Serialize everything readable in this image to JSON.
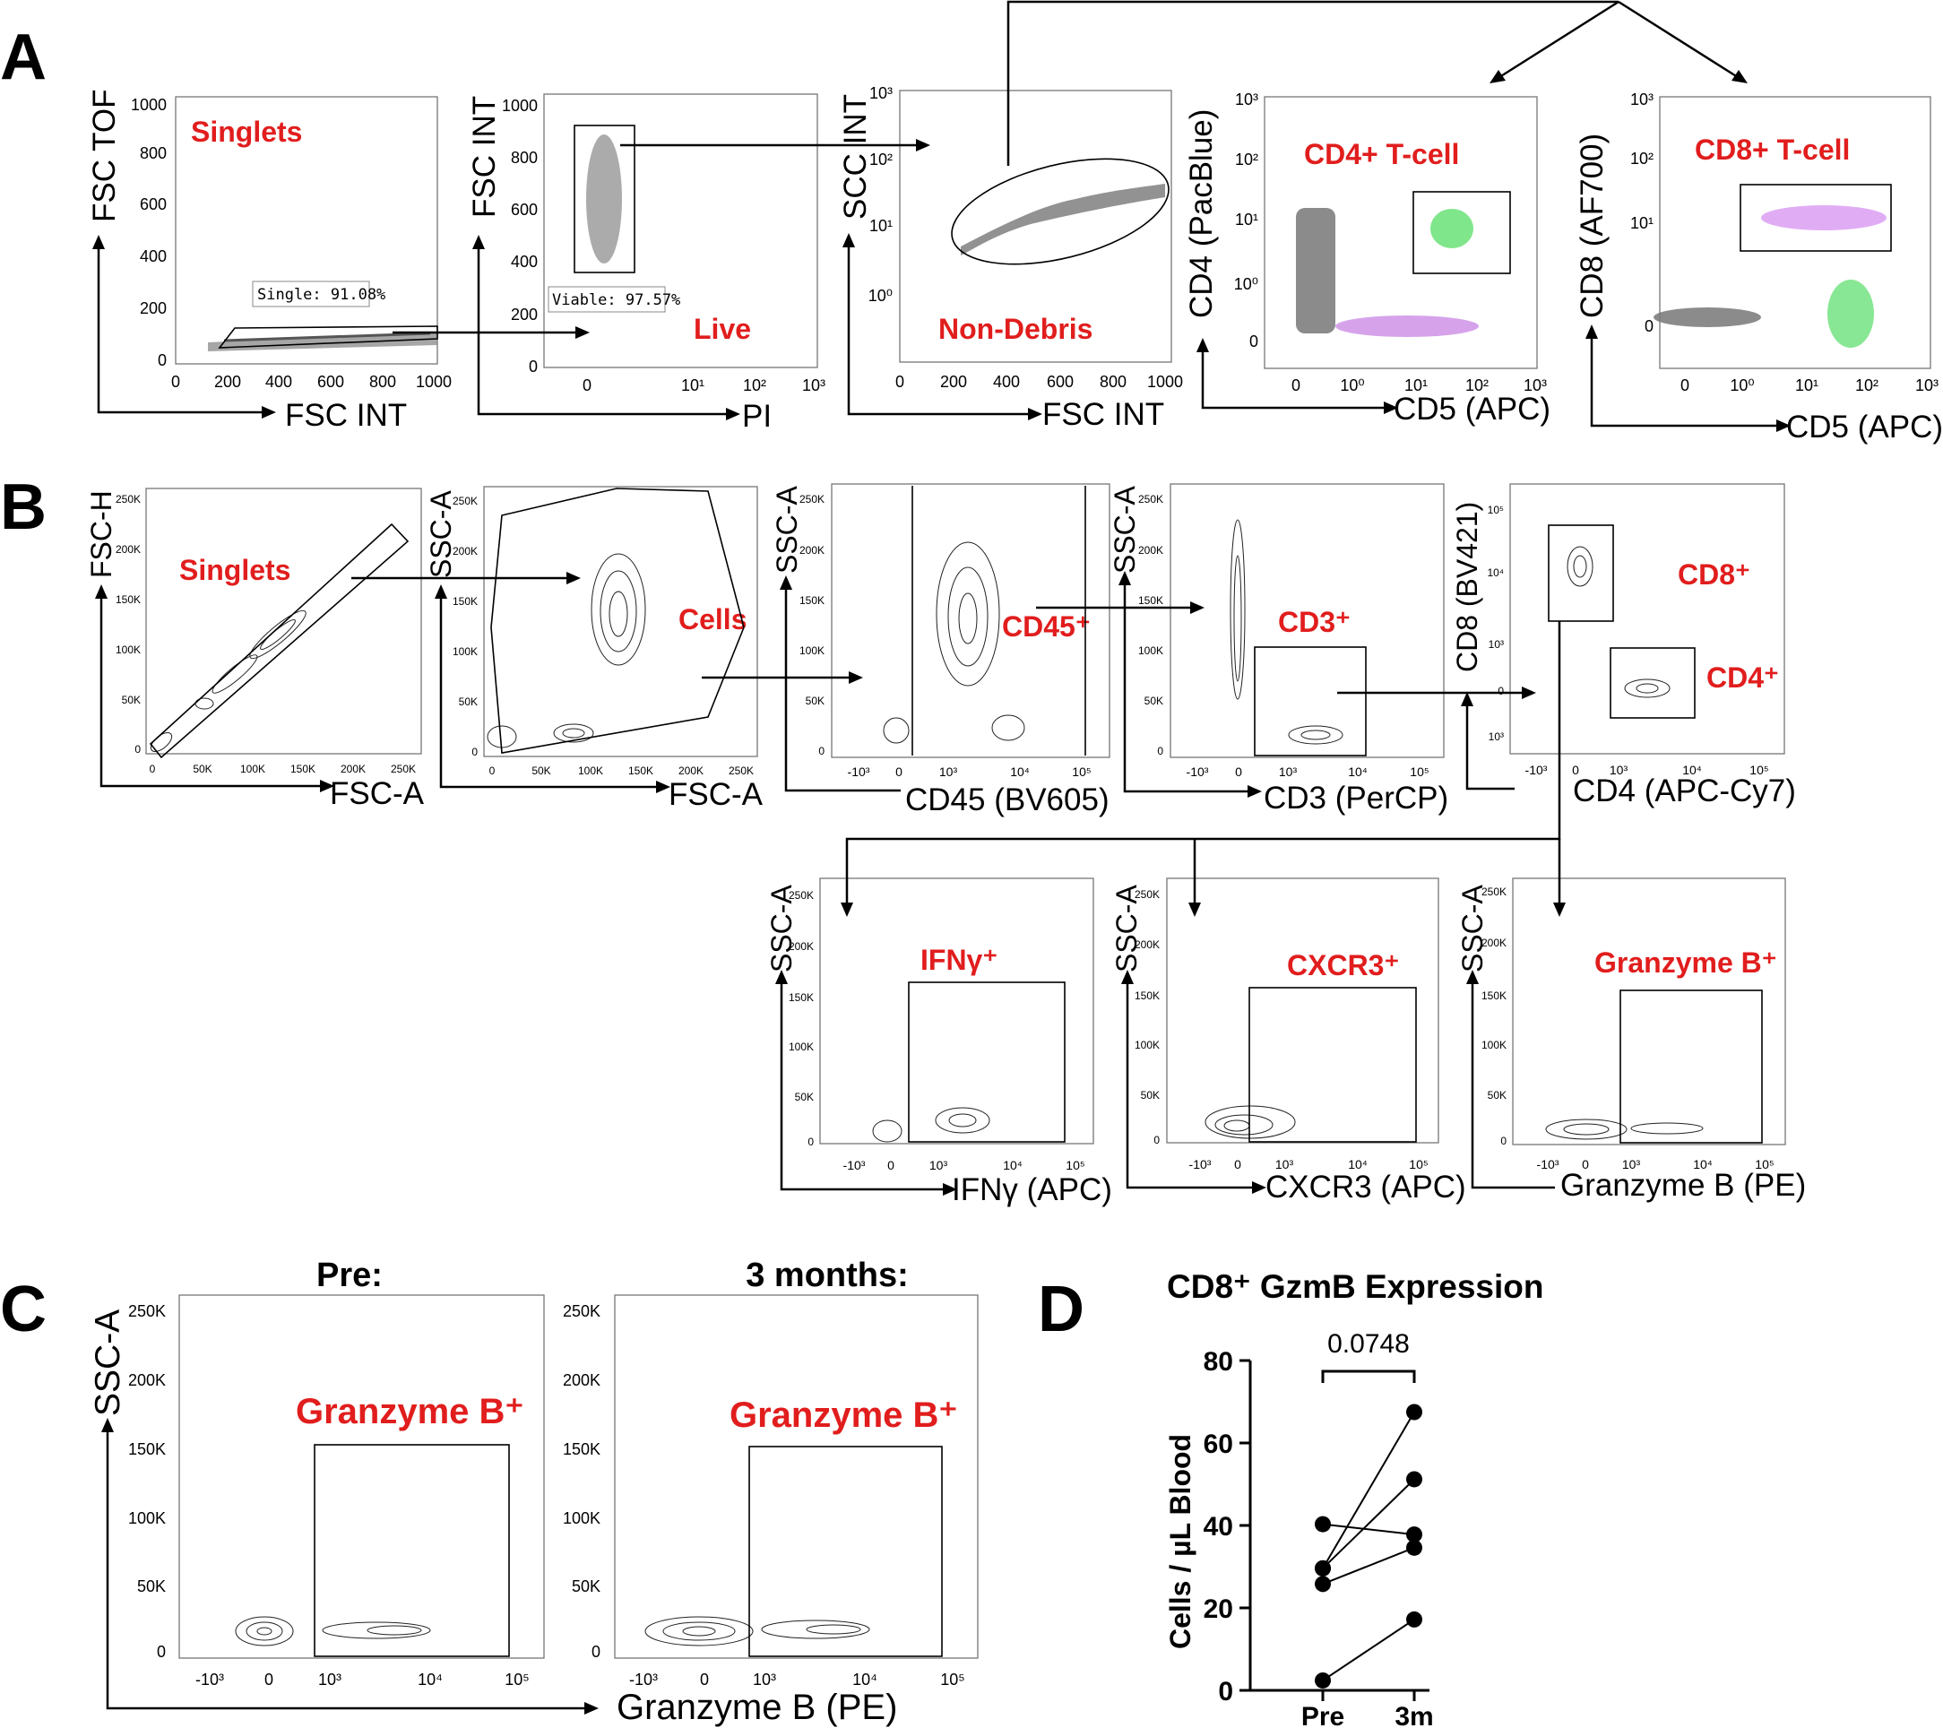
{
  "panel_letters": [
    "A",
    "B",
    "C",
    "D"
  ],
  "panel_a": {
    "plots": [
      {
        "y_label": "FSC TOF",
        "x_label": "FSC INT",
        "gate_label": "Singlets",
        "stat": "Single: 91.08%",
        "x_ticks": [
          "0",
          "200",
          "400",
          "600",
          "800",
          "1000"
        ],
        "y_ticks": [
          "0",
          "200",
          "400",
          "600",
          "800",
          "1000"
        ]
      },
      {
        "y_label": "FSC INT",
        "x_label": "PI",
        "gate_label": "Live",
        "stat": "Viable: 97.57%",
        "x_ticks": [
          "0",
          "10¹",
          "10²",
          "10³"
        ],
        "y_ticks": [
          "0",
          "200",
          "400",
          "600",
          "800",
          "1000"
        ]
      },
      {
        "y_label": "SCC INT",
        "x_label": "FSC INT",
        "gate_label": "Non-Debris",
        "x_ticks": [
          "0",
          "200",
          "400",
          "600",
          "800",
          "1000"
        ],
        "y_ticks": [
          "10⁰",
          "10¹",
          "10²",
          "10³"
        ]
      },
      {
        "y_label": "CD4 (PacBlue)",
        "x_label": "CD5 (APC)",
        "gate_label": "CD4+ T-cell",
        "x_ticks": [
          "0",
          "10⁰",
          "10¹",
          "10²",
          "10³"
        ],
        "y_ticks": [
          "0",
          "10⁰",
          "10¹",
          "10²",
          "10³"
        ]
      },
      {
        "y_label": "CD8 (AF700)",
        "x_label": "CD5 (APC)",
        "gate_label": "CD8+ T-cell",
        "x_ticks": [
          "0",
          "10⁰",
          "10¹",
          "10²",
          "10³"
        ],
        "y_ticks": [
          "0",
          "10¹",
          "10²",
          "10³"
        ]
      }
    ]
  },
  "panel_b": {
    "plots": [
      {
        "y_label": "FSC-H",
        "x_label": "FSC-A",
        "gate_label": "Singlets",
        "x_ticks": [
          "0",
          "50K",
          "100K",
          "150K",
          "200K",
          "250K"
        ],
        "y_ticks": [
          "0",
          "50K",
          "100K",
          "150K",
          "200K",
          "250K"
        ]
      },
      {
        "y_label": "SSC-A",
        "x_label": "FSC-A",
        "gate_label": "Cells",
        "x_ticks": [
          "0",
          "50K",
          "100K",
          "150K",
          "200K",
          "250K"
        ],
        "y_ticks": [
          "0",
          "50K",
          "100K",
          "150K",
          "200K",
          "250K"
        ]
      },
      {
        "y_label": "SSC-A",
        "x_label": "CD45 (BV605)",
        "gate_label": "CD45⁺",
        "x_ticks": [
          "-10³",
          "0",
          "10³",
          "10⁴",
          "10⁵"
        ],
        "y_ticks": [
          "0",
          "50K",
          "100K",
          "150K",
          "200K",
          "250K"
        ]
      },
      {
        "y_label": "SSC-A",
        "x_label": "CD3 (PerCP)",
        "gate_label": "CD3⁺",
        "x_ticks": [
          "-10³",
          "0",
          "10³",
          "10⁴",
          "10⁵"
        ],
        "y_ticks": [
          "0",
          "50K",
          "100K",
          "150K",
          "200K",
          "250K"
        ]
      },
      {
        "y_label": "CD8 (BV421)",
        "x_label": "CD4 (APC-Cy7)",
        "gate_labels": [
          "CD8⁺",
          "CD4⁺"
        ],
        "x_ticks": [
          "-10³",
          "0",
          "10³",
          "10⁴",
          "10⁵"
        ],
        "y_ticks": [
          "10³",
          "0",
          "10³",
          "10⁴",
          "10⁵"
        ]
      },
      {
        "y_label": "SSC-A",
        "x_label": "IFNγ (APC)",
        "gate_label": "IFNγ⁺",
        "x_ticks": [
          "-10³",
          "0",
          "10³",
          "10⁴",
          "10⁵"
        ],
        "y_ticks": [
          "0",
          "50K",
          "100K",
          "150K",
          "200K",
          "250K"
        ]
      },
      {
        "y_label": "SSC-A",
        "x_label": "CXCR3 (APC)",
        "gate_label": "CXCR3⁺",
        "x_ticks": [
          "-10³",
          "0",
          "10³",
          "10⁴",
          "10⁵"
        ],
        "y_ticks": [
          "0",
          "50K",
          "100K",
          "150K",
          "200K",
          "250K"
        ]
      },
      {
        "y_label": "SSC-A",
        "x_label": "Granzyme B (PE)",
        "gate_label": "Granzyme B⁺",
        "x_ticks": [
          "-10³",
          "0",
          "10³",
          "10⁴",
          "10⁵"
        ],
        "y_ticks": [
          "0",
          "50K",
          "100K",
          "150K",
          "200K",
          "250K"
        ]
      }
    ]
  },
  "panel_c": {
    "titles": [
      "Pre:",
      "3 months:"
    ],
    "y_label": "SSC-A",
    "x_label": "Granzyme B (PE)",
    "gate_label": "Granzyme B⁺",
    "x_ticks": [
      "-10³",
      "0",
      "10³",
      "10⁴",
      "10⁵"
    ],
    "y_ticks": [
      "0",
      "50K",
      "100K",
      "150K",
      "200K",
      "250K"
    ]
  },
  "chart_data": {
    "type": "scatter",
    "title": "CD8⁺ GzmB Expression",
    "xlabel": "",
    "ylabel": "Cells / µL Blood",
    "categories": [
      "Pre",
      "3m"
    ],
    "ylim": [
      0,
      80
    ],
    "y_ticks": [
      "0",
      "20",
      "40",
      "60",
      "80"
    ],
    "p_value": "0.0748",
    "paired_series": [
      {
        "values": [
          40.3,
          37.8
        ]
      },
      {
        "values": [
          29.6,
          51.2
        ]
      },
      {
        "values": [
          25.8,
          34.6
        ]
      },
      {
        "values": [
          2.4,
          17.2
        ]
      },
      {
        "values": [
          29.6,
          67.5
        ]
      }
    ]
  }
}
